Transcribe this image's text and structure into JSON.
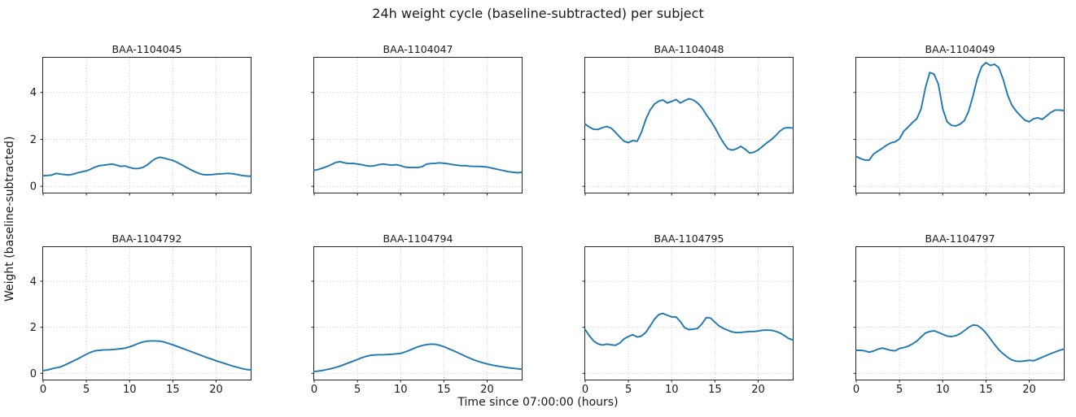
{
  "chart_data": {
    "type": "line",
    "suptitle": "24h weight cycle (baseline-subtracted) per subject",
    "xlabel": "Time since 07:00:00 (hours)",
    "ylabel": "Weight (baseline-subtracted)",
    "layout": {
      "rows": 2,
      "cols": 4,
      "shared_x": true,
      "shared_y": true,
      "grid": "dotted",
      "legend": false
    },
    "xlim": [
      0,
      24
    ],
    "ylim": [
      -0.27,
      5.48
    ],
    "xticks": [
      0,
      5,
      10,
      15,
      20
    ],
    "yticks": [
      0,
      2,
      4
    ],
    "x_start": 0,
    "x_step": 0.5,
    "line_color": "#1f77b4",
    "series": [
      {
        "name": "BAA-1104045",
        "values": [
          0.45,
          0.46,
          0.48,
          0.55,
          0.52,
          0.5,
          0.48,
          0.52,
          0.58,
          0.62,
          0.66,
          0.73,
          0.82,
          0.88,
          0.9,
          0.93,
          0.95,
          0.9,
          0.85,
          0.87,
          0.8,
          0.76,
          0.76,
          0.8,
          0.9,
          1.05,
          1.18,
          1.24,
          1.2,
          1.15,
          1.1,
          1.02,
          0.92,
          0.82,
          0.72,
          0.63,
          0.55,
          0.5,
          0.49,
          0.5,
          0.52,
          0.53,
          0.54,
          0.55,
          0.53,
          0.5,
          0.46,
          0.44,
          0.43
        ]
      },
      {
        "name": "BAA-1104047",
        "values": [
          0.68,
          0.72,
          0.78,
          0.85,
          0.93,
          1.02,
          1.05,
          1.0,
          0.97,
          0.98,
          0.95,
          0.92,
          0.88,
          0.86,
          0.88,
          0.93,
          0.95,
          0.92,
          0.9,
          0.92,
          0.88,
          0.82,
          0.8,
          0.8,
          0.8,
          0.84,
          0.95,
          0.97,
          0.98,
          1.0,
          0.98,
          0.96,
          0.93,
          0.9,
          0.88,
          0.88,
          0.86,
          0.85,
          0.85,
          0.84,
          0.82,
          0.78,
          0.74,
          0.7,
          0.66,
          0.62,
          0.6,
          0.58,
          0.6
        ]
      },
      {
        "name": "BAA-1104048",
        "values": [
          2.65,
          2.52,
          2.43,
          2.42,
          2.5,
          2.55,
          2.48,
          2.3,
          2.1,
          1.92,
          1.86,
          1.95,
          1.92,
          2.3,
          2.85,
          3.25,
          3.5,
          3.63,
          3.68,
          3.55,
          3.62,
          3.7,
          3.55,
          3.65,
          3.73,
          3.68,
          3.55,
          3.35,
          3.05,
          2.8,
          2.5,
          2.15,
          1.85,
          1.6,
          1.54,
          1.6,
          1.7,
          1.58,
          1.42,
          1.45,
          1.55,
          1.7,
          1.85,
          1.98,
          2.15,
          2.35,
          2.48,
          2.5,
          2.48
        ]
      },
      {
        "name": "BAA-1104049",
        "values": [
          1.28,
          1.18,
          1.12,
          1.12,
          1.38,
          1.5,
          1.62,
          1.75,
          1.85,
          1.9,
          2.02,
          2.35,
          2.53,
          2.72,
          2.88,
          3.3,
          4.2,
          4.85,
          4.78,
          4.35,
          3.3,
          2.75,
          2.6,
          2.57,
          2.65,
          2.8,
          3.2,
          3.85,
          4.6,
          5.1,
          5.27,
          5.15,
          5.2,
          5.05,
          4.55,
          3.9,
          3.45,
          3.2,
          3.0,
          2.82,
          2.75,
          2.88,
          2.92,
          2.85,
          3.0,
          3.15,
          3.25,
          3.25,
          3.23
        ]
      },
      {
        "name": "BAA-1104792",
        "values": [
          0.12,
          0.15,
          0.2,
          0.24,
          0.28,
          0.36,
          0.45,
          0.54,
          0.63,
          0.73,
          0.83,
          0.92,
          0.98,
          1.0,
          1.02,
          1.02,
          1.03,
          1.05,
          1.07,
          1.1,
          1.15,
          1.22,
          1.3,
          1.36,
          1.4,
          1.41,
          1.41,
          1.4,
          1.36,
          1.3,
          1.24,
          1.17,
          1.1,
          1.03,
          0.96,
          0.89,
          0.82,
          0.75,
          0.68,
          0.62,
          0.55,
          0.49,
          0.43,
          0.37,
          0.31,
          0.26,
          0.21,
          0.17,
          0.15
        ]
      },
      {
        "name": "BAA-1104794",
        "values": [
          0.08,
          0.1,
          0.13,
          0.17,
          0.21,
          0.26,
          0.32,
          0.39,
          0.46,
          0.53,
          0.6,
          0.68,
          0.74,
          0.78,
          0.8,
          0.81,
          0.81,
          0.82,
          0.83,
          0.85,
          0.87,
          0.93,
          1.0,
          1.08,
          1.15,
          1.21,
          1.25,
          1.27,
          1.26,
          1.22,
          1.16,
          1.08,
          1.0,
          0.92,
          0.83,
          0.74,
          0.66,
          0.58,
          0.52,
          0.46,
          0.41,
          0.37,
          0.33,
          0.3,
          0.27,
          0.24,
          0.22,
          0.2,
          0.18
        ]
      },
      {
        "name": "BAA-1104795",
        "values": [
          1.9,
          1.62,
          1.4,
          1.28,
          1.23,
          1.27,
          1.24,
          1.22,
          1.32,
          1.5,
          1.6,
          1.68,
          1.58,
          1.62,
          1.78,
          2.05,
          2.35,
          2.55,
          2.6,
          2.52,
          2.45,
          2.45,
          2.25,
          1.98,
          1.9,
          1.92,
          1.95,
          2.15,
          2.42,
          2.4,
          2.22,
          2.05,
          1.95,
          1.87,
          1.8,
          1.77,
          1.78,
          1.8,
          1.82,
          1.82,
          1.84,
          1.87,
          1.88,
          1.87,
          1.83,
          1.76,
          1.65,
          1.52,
          1.45
        ]
      },
      {
        "name": "BAA-1104797",
        "values": [
          1.0,
          1.0,
          0.98,
          0.92,
          0.97,
          1.05,
          1.1,
          1.05,
          1.0,
          0.98,
          1.08,
          1.12,
          1.18,
          1.28,
          1.4,
          1.58,
          1.75,
          1.82,
          1.85,
          1.78,
          1.7,
          1.62,
          1.6,
          1.63,
          1.72,
          1.85,
          2.0,
          2.1,
          2.08,
          1.95,
          1.75,
          1.5,
          1.25,
          1.02,
          0.85,
          0.7,
          0.58,
          0.53,
          0.52,
          0.54,
          0.57,
          0.55,
          0.62,
          0.7,
          0.78,
          0.86,
          0.93,
          1.0,
          1.05
        ]
      }
    ]
  }
}
